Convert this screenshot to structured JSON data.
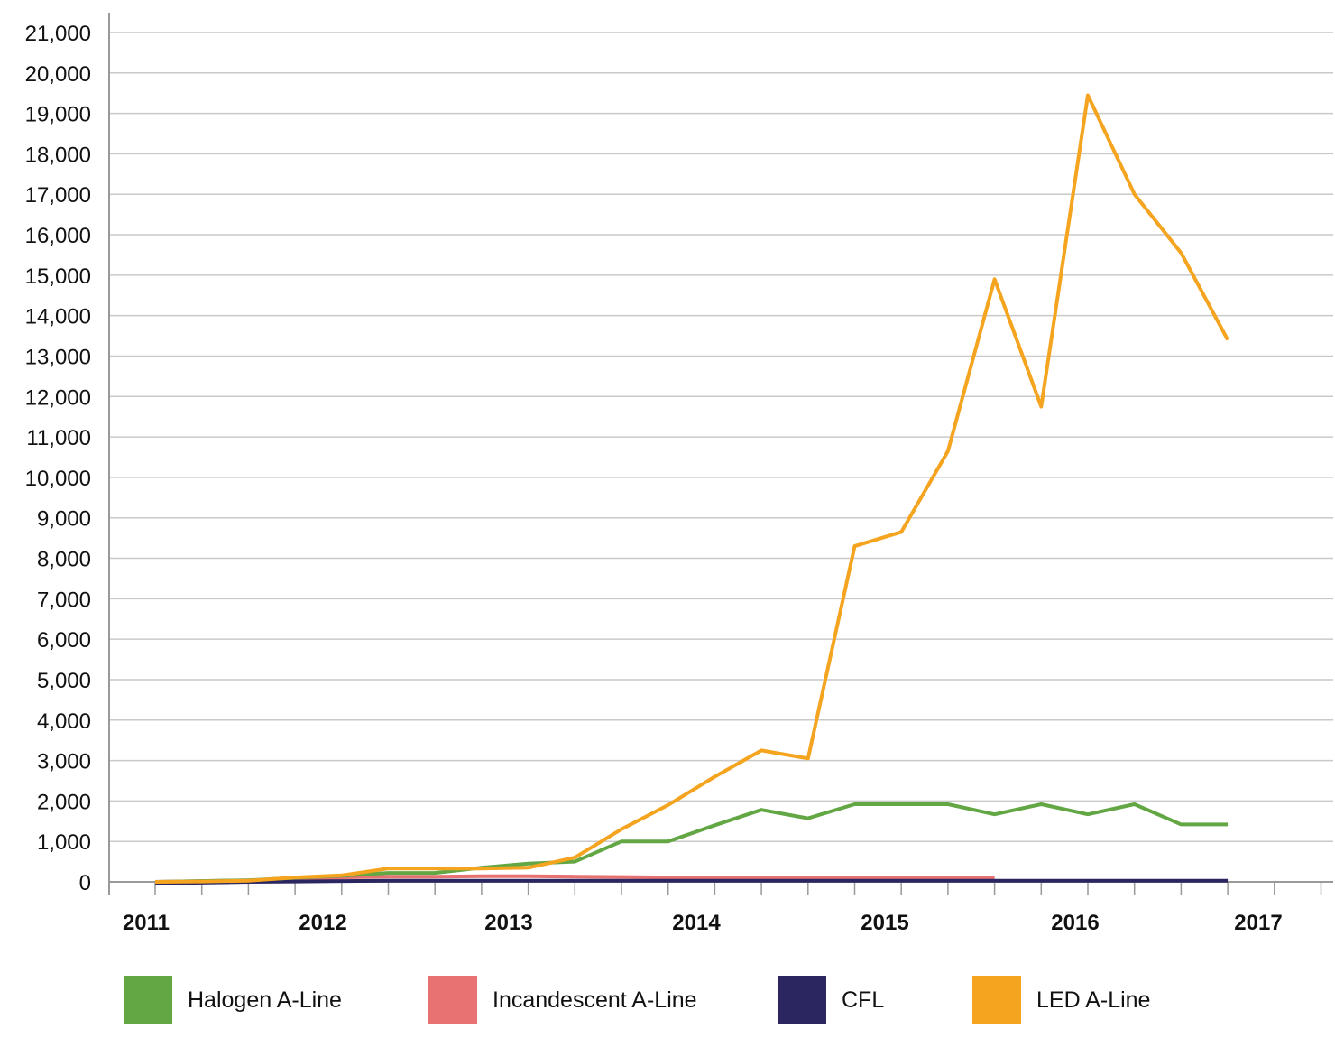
{
  "chart_data": {
    "type": "line",
    "title": "",
    "xlabel": "",
    "ylabel": "",
    "ylim": [
      0,
      21000
    ],
    "y_ticks": [
      0,
      1000,
      2000,
      3000,
      4000,
      5000,
      6000,
      7000,
      8000,
      9000,
      10000,
      11000,
      12000,
      13000,
      14000,
      15000,
      16000,
      17000,
      18000,
      19000,
      20000,
      21000
    ],
    "y_tick_labels": [
      "0",
      "1,000",
      "2,000",
      "3,000",
      "4,000",
      "5,000",
      "6,000",
      "7,000",
      "8,000",
      "9,000",
      "10,000",
      "11,000",
      "12,000",
      "13,000",
      "14,000",
      "15,000",
      "16,000",
      "17,000",
      "18,000",
      "19,000",
      "20,000",
      "21,000"
    ],
    "x_tick_labels": [
      "2011",
      "2012",
      "2013",
      "2014",
      "2015",
      "2016",
      "2017"
    ],
    "x_label_quarters": [
      0,
      4,
      8,
      12,
      16,
      20,
      24
    ],
    "x_range_quarters": [
      0,
      25
    ],
    "grid": true,
    "legend_position": "bottom",
    "series": [
      {
        "name": "Halogen A-Line",
        "color": "#62a744",
        "start_quarter": 0,
        "values": [
          0,
          20,
          40,
          100,
          150,
          220,
          220,
          350,
          450,
          500,
          1000,
          1000,
          1400,
          1780,
          1570,
          1920,
          1920,
          1920,
          1670,
          1920,
          1670,
          1920,
          1420,
          1420
        ]
      },
      {
        "name": "Incandescent A-Line",
        "color": "#e87171",
        "start_quarter": 0,
        "values": [
          0,
          20,
          40,
          70,
          110,
          130,
          130,
          140,
          140,
          130,
          120,
          110,
          100,
          100,
          100,
          100,
          100,
          100,
          100
        ]
      },
      {
        "name": "CFL",
        "color": "#2b2560",
        "start_quarter": 0,
        "values": [
          -40,
          -20,
          0,
          10,
          20,
          30,
          30,
          30,
          30,
          30,
          30,
          30,
          30,
          30,
          30,
          30,
          30,
          30,
          30,
          30,
          30,
          30,
          30,
          30
        ]
      },
      {
        "name": "LED A-Line",
        "color": "#f4a41f",
        "start_quarter": 0,
        "values": [
          0,
          10,
          30,
          110,
          160,
          330,
          330,
          330,
          350,
          600,
          1300,
          1900,
          2600,
          3250,
          3050,
          8300,
          8650,
          10650,
          14900,
          11750,
          19450,
          17000,
          15550,
          13400
        ]
      }
    ]
  }
}
